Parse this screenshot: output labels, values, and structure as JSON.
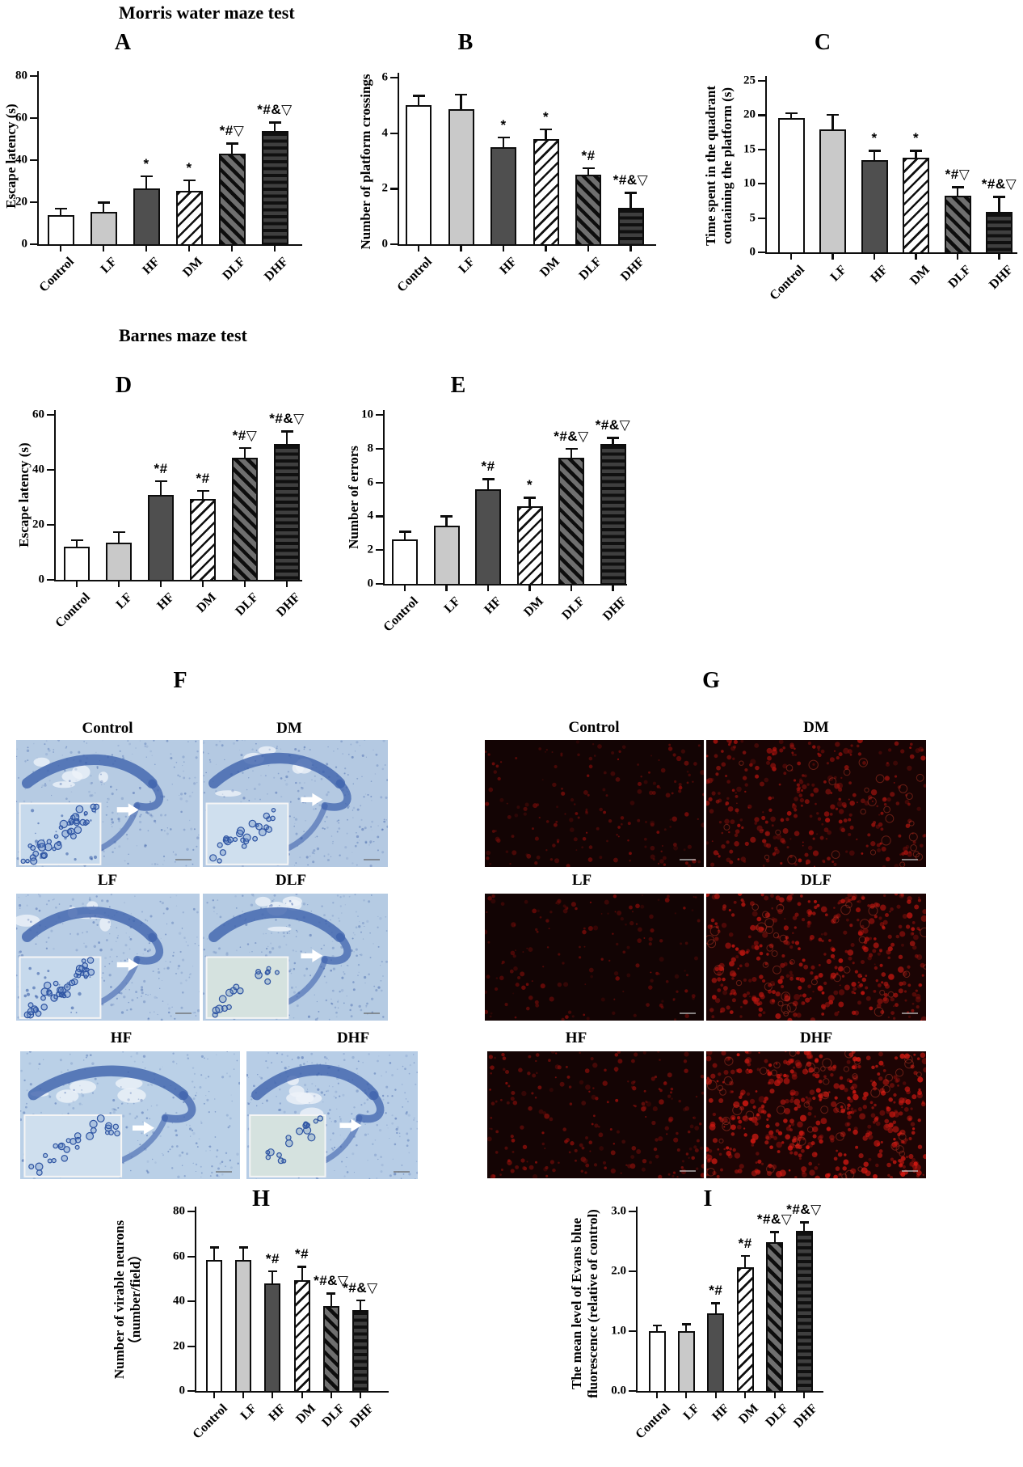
{
  "figure": {
    "section_titles": {
      "morris": "Morris water maze test",
      "barnes": "Barnes maze test"
    }
  },
  "groups": [
    "Control",
    "LF",
    "HF",
    "DM",
    "DLF",
    "DHF"
  ],
  "bar_patterns": [
    "white",
    "light-gray",
    "dark-gray",
    "diagonal-hatch",
    "dark-diagonal-hatch",
    "dark-horizontal-stripes"
  ],
  "chart_data": [
    {
      "type": "bar",
      "id": "A",
      "title": "A",
      "section": "Morris water maze test",
      "ylabel": "Escape latency (s)",
      "ylabel_lines": [
        "Escape latency (s)"
      ],
      "categories": [
        "Control",
        "LF",
        "HF",
        "DM",
        "DLF",
        "DHF"
      ],
      "values": [
        14,
        15.5,
        26.5,
        25.5,
        43,
        54
      ],
      "errors": [
        3,
        4.5,
        6,
        5,
        5,
        4
      ],
      "annotations": [
        "",
        "",
        "*",
        "*",
        "*#▽",
        "*#&▽"
      ],
      "ylim": [
        0,
        80
      ],
      "yticks": [
        0,
        20,
        40,
        60,
        80
      ],
      "ytick_labels": [
        "0",
        "20",
        "40",
        "60",
        "80"
      ]
    },
    {
      "type": "bar",
      "id": "B",
      "title": "B",
      "section": "Morris water maze test",
      "ylabel": "Number of platform crossings",
      "ylabel_lines": [
        "Number of platform crossings"
      ],
      "categories": [
        "Control",
        "LF",
        "HF",
        "DM",
        "DLF",
        "DHF"
      ],
      "values": [
        5,
        4.85,
        3.5,
        3.8,
        2.5,
        1.3
      ],
      "errors": [
        0.35,
        0.55,
        0.35,
        0.35,
        0.25,
        0.55
      ],
      "annotations": [
        "",
        "",
        "*",
        "*",
        "*#",
        "*#&▽"
      ],
      "ylim": [
        0,
        6
      ],
      "yticks": [
        0,
        2,
        4,
        6
      ],
      "ytick_labels": [
        "0",
        "2",
        "4",
        "6"
      ]
    },
    {
      "type": "bar",
      "id": "C",
      "title": "C",
      "section": "Morris water maze test",
      "ylabel": "Time spent in the quadrant containing the platform (s)",
      "ylabel_lines": [
        "Time spent in the quadrant",
        "containing the platform (s)"
      ],
      "categories": [
        "Control",
        "LF",
        "HF",
        "DM",
        "DLF",
        "DHF"
      ],
      "values": [
        19.6,
        17.9,
        13.4,
        13.8,
        8.2,
        5.9
      ],
      "errors": [
        0.7,
        2.2,
        1.4,
        1,
        1.3,
        2.2
      ],
      "annotations": [
        "",
        "",
        "*",
        "*",
        "*#▽",
        "*#&▽"
      ],
      "ylim": [
        0,
        25
      ],
      "yticks": [
        0,
        5,
        10,
        15,
        20,
        25
      ],
      "ytick_labels": [
        "0",
        "5",
        "10",
        "15",
        "20",
        "25"
      ]
    },
    {
      "type": "bar",
      "id": "D",
      "title": "D",
      "section": "Barnes maze test",
      "ylabel": "Escape latency (s)",
      "ylabel_lines": [
        "Escape latency (s)"
      ],
      "categories": [
        "Control",
        "LF",
        "HF",
        "DM",
        "DLF",
        "DHF"
      ],
      "values": [
        12,
        13.5,
        31,
        29.5,
        44.5,
        49.5
      ],
      "errors": [
        2.5,
        4,
        5,
        3,
        3.5,
        4.5
      ],
      "annotations": [
        "",
        "",
        "*#",
        "*#",
        "*#▽",
        "*#&▽"
      ],
      "ylim": [
        0,
        60
      ],
      "yticks": [
        0,
        20,
        40,
        60
      ],
      "ytick_labels": [
        "0",
        "20",
        "40",
        "60"
      ]
    },
    {
      "type": "bar",
      "id": "E",
      "title": "E",
      "section": "Barnes maze test",
      "ylabel": "Number of errors",
      "ylabel_lines": [
        "Number of errors"
      ],
      "categories": [
        "Control",
        "LF",
        "HF",
        "DM",
        "DLF",
        "DHF"
      ],
      "values": [
        2.65,
        3.45,
        5.6,
        4.6,
        7.45,
        8.3
      ],
      "errors": [
        0.45,
        0.55,
        0.6,
        0.5,
        0.55,
        0.35
      ],
      "annotations": [
        "",
        "",
        "*#",
        "*",
        "*#&▽",
        "*#&▽"
      ],
      "ylim": [
        0,
        10
      ],
      "yticks": [
        0,
        2,
        4,
        6,
        8,
        10
      ],
      "ytick_labels": [
        "0",
        "2",
        "4",
        "6",
        "8",
        "10"
      ]
    },
    {
      "type": "bar",
      "id": "H",
      "title": "H",
      "section": "",
      "ylabel": "Number of virable neurons（number/field）",
      "ylabel_lines": [
        "Number of virable neurons",
        "（number/field）"
      ],
      "categories": [
        "Control",
        "LF",
        "HF",
        "DM",
        "DLF",
        "DHF"
      ],
      "values": [
        58.5,
        58.5,
        48,
        49.5,
        38,
        36
      ],
      "errors": [
        5.5,
        5.5,
        5.5,
        6,
        5.5,
        4.5
      ],
      "annotations": [
        "",
        "",
        "*#",
        "*#",
        "*#&▽",
        "*#&▽"
      ],
      "ylim": [
        0,
        80
      ],
      "yticks": [
        0,
        20,
        40,
        60,
        80
      ],
      "ytick_labels": [
        "0",
        "20",
        "40",
        "60",
        "80"
      ]
    },
    {
      "type": "bar",
      "id": "I",
      "title": "I",
      "section": "",
      "ylabel": "The mean level of Evans blue fluorescence (relative of control)",
      "ylabel_lines": [
        "The mean level of Evans blue",
        "fluorescence (relative of control)"
      ],
      "categories": [
        "Control",
        "LF",
        "HF",
        "DM",
        "DLF",
        "DHF"
      ],
      "values": [
        1,
        1,
        1.3,
        2.07,
        2.48,
        2.68
      ],
      "errors": [
        0.1,
        0.12,
        0.17,
        0.19,
        0.18,
        0.14
      ],
      "annotations": [
        "",
        "",
        "*#",
        "*#",
        "*#&▽",
        "*#&▽"
      ],
      "ylim": [
        0,
        3
      ],
      "yticks": [
        0,
        1,
        2,
        3
      ],
      "ytick_labels": [
        "0.0",
        "1.0",
        "2.0",
        "3.0"
      ]
    }
  ],
  "micro_panels": [
    {
      "id": "F",
      "label": "F",
      "stain": "nissl",
      "images": [
        {
          "label": "Control",
          "inset_cell_density": "high"
        },
        {
          "label": "DM",
          "inset_cell_density": "medium"
        },
        {
          "label": "LF",
          "inset_cell_density": "high"
        },
        {
          "label": "DLF",
          "inset_cell_density": "low"
        },
        {
          "label": "HF",
          "inset_cell_density": "medium"
        },
        {
          "label": "DHF",
          "inset_cell_density": "low"
        }
      ]
    },
    {
      "id": "G",
      "label": "G",
      "stain": "fluorescence",
      "images": [
        {
          "label": "Control",
          "intensity": 0.18
        },
        {
          "label": "DM",
          "intensity": 0.55
        },
        {
          "label": "LF",
          "intensity": 0.12
        },
        {
          "label": "DLF",
          "intensity": 0.78
        },
        {
          "label": "HF",
          "intensity": 0.3
        },
        {
          "label": "DHF",
          "intensity": 0.95
        }
      ]
    }
  ]
}
